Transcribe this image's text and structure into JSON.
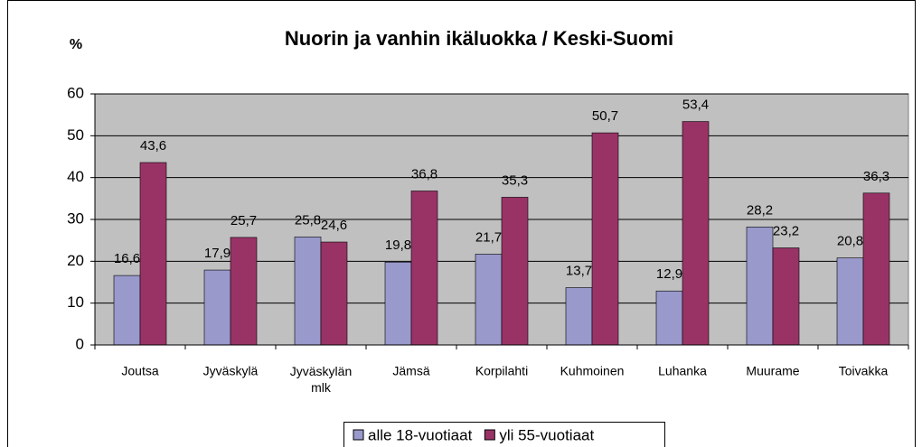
{
  "chart_data": {
    "type": "bar",
    "title": "Nuorin ja vanhin ikäluokka / Keski-Suomi",
    "y_label": "%",
    "categories": [
      "Joutsa",
      "Jyväskylä",
      "Jyväskylän mlk",
      "Jämsä",
      "Korpilahti",
      "Kuhmoinen",
      "Luhanka",
      "Muurame",
      "Toivakka"
    ],
    "series": [
      {
        "name": "alle 18-vuotiaat",
        "color": "#9999cc",
        "values": [
          16.6,
          17.9,
          25.8,
          19.8,
          21.7,
          13.7,
          12.9,
          28.2,
          20.8
        ],
        "value_labels": [
          "16,6",
          "17,9",
          "25,8",
          "19,8",
          "21,7",
          "13,7",
          "12,9",
          "28,2",
          "20,8"
        ]
      },
      {
        "name": "yli 55-vuotiaat",
        "color": "#993366",
        "values": [
          43.6,
          25.7,
          24.6,
          36.8,
          35.3,
          50.7,
          53.4,
          23.2,
          36.3
        ],
        "value_labels": [
          "43,6",
          "25,7",
          "24,6",
          "36,8",
          "35,3",
          "50,7",
          "53,4",
          "23,2",
          "36,3"
        ]
      }
    ],
    "ylim": [
      0,
      60
    ],
    "yticks": [
      0,
      10,
      20,
      30,
      40,
      50,
      60
    ],
    "grid": true,
    "plot_background": "#c0c0c0",
    "legend": "bottom"
  }
}
